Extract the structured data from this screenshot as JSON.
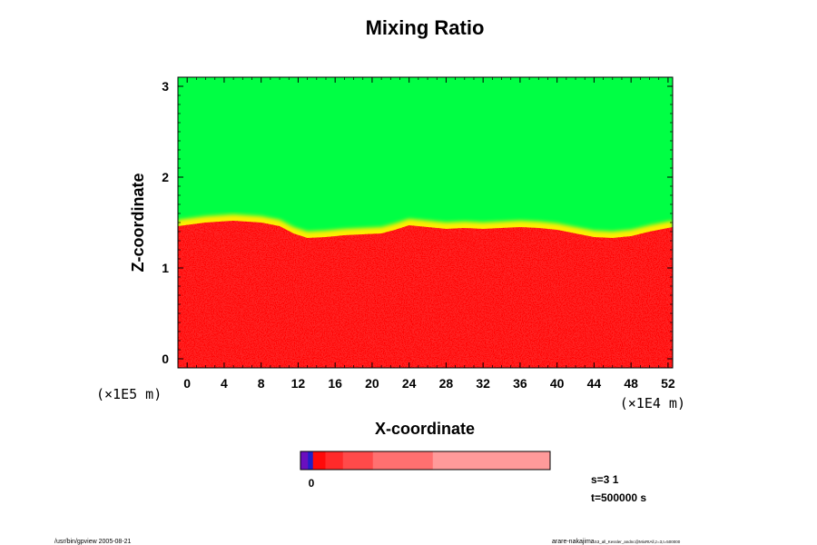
{
  "chart_data": {
    "type": "heatmap",
    "title": "Mixing Ratio",
    "xlabel": "X-coordinate",
    "ylabel": "Z-coordinate",
    "x_unit": "(×1E4 m)",
    "y_unit": "(×1E5 m)",
    "xlim": [
      -1,
      52.5
    ],
    "ylim": [
      -0.1,
      3.1
    ],
    "x_ticks": [
      0,
      4,
      8,
      12,
      16,
      20,
      24,
      28,
      32,
      36,
      40,
      44,
      48,
      52
    ],
    "y_ticks": [
      0,
      1,
      2,
      3
    ],
    "grid": false,
    "boundary_z": [
      [
        -1,
        1.46
      ],
      [
        2,
        1.5
      ],
      [
        5,
        1.52
      ],
      [
        8,
        1.5
      ],
      [
        10,
        1.46
      ],
      [
        11.5,
        1.38
      ],
      [
        13,
        1.33
      ],
      [
        15,
        1.34
      ],
      [
        17,
        1.36
      ],
      [
        19,
        1.37
      ],
      [
        21,
        1.38
      ],
      [
        22.5,
        1.42
      ],
      [
        24,
        1.47
      ],
      [
        26,
        1.45
      ],
      [
        28,
        1.43
      ],
      [
        30,
        1.44
      ],
      [
        32,
        1.43
      ],
      [
        34,
        1.44
      ],
      [
        36,
        1.45
      ],
      [
        38,
        1.44
      ],
      [
        40,
        1.42
      ],
      [
        42,
        1.38
      ],
      [
        44,
        1.34
      ],
      [
        46,
        1.33
      ],
      [
        48,
        1.35
      ],
      [
        50,
        1.4
      ],
      [
        52.5,
        1.45
      ]
    ],
    "colors": {
      "upper_region": "#00ff44",
      "lower_region": "#ff2222",
      "lower_speckle": "#ff0000",
      "transition": "#ffee00"
    },
    "colorbar": {
      "label": "0",
      "segments": [
        {
          "color": "#6a0fbf",
          "width": 3
        },
        {
          "color": "#2020c8",
          "width": 2
        },
        {
          "color": "#ff0a0a",
          "width": 5
        },
        {
          "color": "#ff2a2a",
          "width": 7
        },
        {
          "color": "#ff4a4a",
          "width": 12
        },
        {
          "color": "#ff7070",
          "width": 24
        },
        {
          "color": "#ff9a9a",
          "width": 47
        }
      ]
    },
    "info": {
      "step": "s=3 1",
      "time": "t=500000 s"
    }
  },
  "footer": {
    "left": "/usr/bin/gpview 2005-08-21",
    "right_main": "arare-nakajima",
    "right_small": "S3_all_Kessler_andnc@MixRtAll,z=3,t=500000"
  }
}
